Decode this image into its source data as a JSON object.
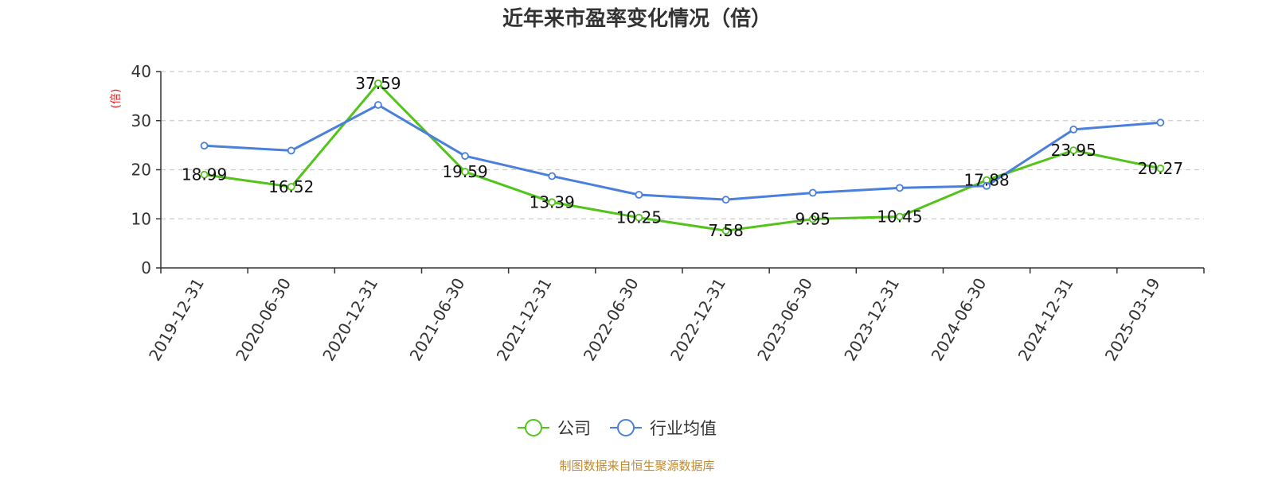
{
  "chart_data": {
    "type": "line",
    "title": "近年来市盈率变化情况（倍）",
    "ylabel": "(倍)",
    "xlabel": "",
    "categories": [
      "2019-12-31",
      "2020-06-30",
      "2020-12-31",
      "2021-06-30",
      "2021-12-31",
      "2022-06-30",
      "2022-12-31",
      "2023-06-30",
      "2023-12-31",
      "2024-06-30",
      "2024-12-31",
      "2025-03-19"
    ],
    "y_ticks": [
      "0",
      "10",
      "20",
      "30",
      "40"
    ],
    "ylim": [
      0,
      40
    ],
    "grid": true,
    "legend_position": "bottom",
    "series": [
      {
        "name": "公司",
        "color": "#52c41a",
        "values": [
          18.99,
          16.52,
          37.59,
          19.59,
          13.39,
          10.25,
          7.58,
          9.95,
          10.45,
          17.88,
          23.95,
          20.27
        ],
        "labels": [
          "18.99",
          "16.52",
          "37.59",
          "19.59",
          "13.39",
          "10.25",
          "7.58",
          "9.95",
          "10.45",
          "17.88",
          "23.95",
          "20.27"
        ]
      },
      {
        "name": "行业均值",
        "color": "#4a7fdc",
        "values": [
          24.9,
          23.9,
          33.2,
          22.8,
          18.7,
          14.9,
          13.9,
          15.3,
          16.3,
          16.7,
          28.2,
          29.6
        ]
      }
    ],
    "source": "制图数据来自恒生聚源数据库"
  }
}
